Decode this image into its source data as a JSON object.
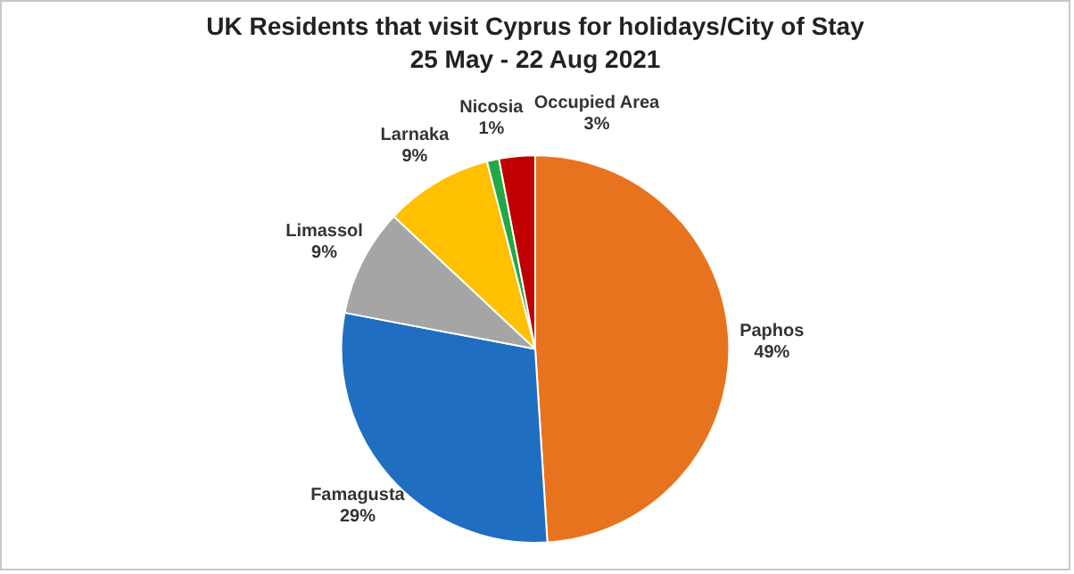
{
  "chart_data": {
    "type": "pie",
    "title": "UK Residents that visit Cyprus for holidays/City of Stay",
    "subtitle": "25 May - 22 Aug 2021",
    "categories": [
      "Paphos",
      "Famagusta",
      "Limassol",
      "Larnaka",
      "Nicosia",
      "Occupied Area"
    ],
    "values": [
      49,
      29,
      9,
      9,
      1,
      3
    ],
    "value_labels": [
      "49%",
      "29%",
      "9%",
      "9%",
      "1%",
      "3%"
    ],
    "colors": [
      "#e8731e",
      "#1f6ec2",
      "#a5a5a5",
      "#ffc000",
      "#22a844",
      "#c00000"
    ],
    "legend": false
  }
}
